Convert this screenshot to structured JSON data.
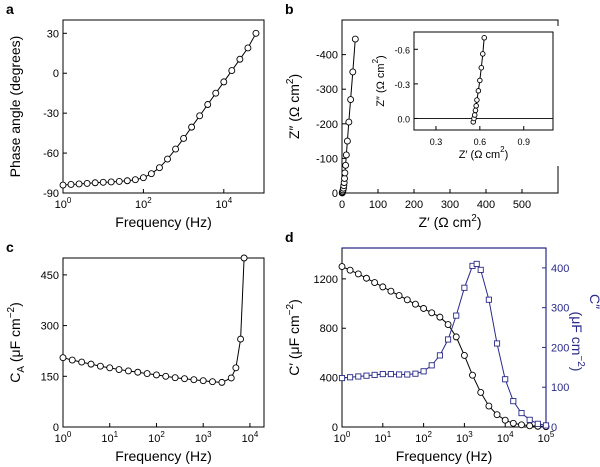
{
  "chart_data": [
    {
      "type": "scatter",
      "panel_label": "a",
      "xlabel": "Frequency (Hz)",
      "ylabel": "Phase angle (degrees)",
      "x_scale": "log",
      "xlim": [
        1,
        100000
      ],
      "ylim": [
        -90,
        40
      ],
      "y_reversed": true,
      "x_ticks": [
        1,
        100,
        10000
      ],
      "x_tick_labels": [
        {
          "base": "10",
          "exp": "0"
        },
        {
          "base": "10",
          "exp": "2"
        },
        {
          "base": "10",
          "exp": "4"
        }
      ],
      "y_ticks": [
        -90,
        -60,
        -30,
        0,
        30
      ],
      "y_tick_labels": [
        "-90",
        "-60",
        "-30",
        "0",
        "30"
      ],
      "series": [
        {
          "marker": "circle",
          "line": true,
          "x": [
            1,
            1.58,
            2.51,
            3.98,
            6.31,
            10,
            15.8,
            25.1,
            39.8,
            63.1,
            100,
            158,
            251,
            398,
            631,
            1000,
            1580,
            2510,
            3980,
            6310,
            10000,
            15800,
            25100,
            39800,
            63100
          ],
          "y": [
            -84,
            -83.6,
            -83.2,
            -82.8,
            -82.3,
            -82,
            -81.7,
            -81.3,
            -80.8,
            -80,
            -78.5,
            -75.5,
            -71,
            -64.5,
            -57,
            -49,
            -40.5,
            -32,
            -23.5,
            -15,
            -6.5,
            2,
            10.5,
            19,
            30
          ]
        }
      ]
    },
    {
      "type": "scatter",
      "panel_label": "b",
      "xlabel_parts": {
        "main": "Z′ (Ω cm",
        "sup": "2",
        "end": ")"
      },
      "ylabel_parts": {
        "main": "Z″ (Ω cm",
        "sup": "2",
        "end": ")"
      },
      "xlim": [
        0,
        600
      ],
      "ylim": [
        0,
        -500
      ],
      "x_ticks": [
        0,
        100,
        200,
        300,
        400,
        500
      ],
      "x_tick_labels": [
        "0",
        "100",
        "200",
        "300",
        "400",
        "500"
      ],
      "y_ticks": [
        0,
        -100,
        -200,
        -300,
        -400
      ],
      "y_tick_labels": [
        "0",
        "-100",
        "-200",
        "-300",
        "-400"
      ],
      "series": [
        {
          "marker": "circle",
          "line": true,
          "x": [
            0.6,
            1,
            2,
            3,
            4,
            5,
            6,
            7,
            8,
            10,
            12,
            15,
            19,
            24,
            30,
            37
          ],
          "y": [
            -0.05,
            -2,
            -5,
            -9,
            -14,
            -21,
            -30,
            -42,
            -58,
            -80,
            -110,
            -150,
            -205,
            -270,
            -350,
            -445
          ]
        }
      ],
      "inset": {
        "xlabel_parts": {
          "main": "Z′ (Ω cm",
          "sup": "2",
          "end": ")"
        },
        "ylabel_parts": {
          "main": "Z″ (Ω cm",
          "sup": "2",
          "end": ")"
        },
        "xlim": [
          0.15,
          1.1
        ],
        "ylim": [
          0.1,
          -0.75
        ],
        "x_ticks": [
          0.3,
          0.6,
          0.9
        ],
        "x_tick_labels": [
          "0.3",
          "0.6",
          "0.9"
        ],
        "y_ticks": [
          0,
          -0.3,
          -0.6
        ],
        "y_tick_labels": [
          "0.0",
          "-0.3",
          "-0.6"
        ],
        "reference_line_y": 0,
        "series": [
          {
            "marker": "circle",
            "line": true,
            "x": [
              0.555,
              0.56,
              0.565,
              0.57,
              0.575,
              0.58,
              0.59,
              0.6,
              0.61,
              0.62,
              0.63
            ],
            "y": [
              0.03,
              0,
              -0.03,
              -0.07,
              -0.11,
              -0.16,
              -0.24,
              -0.33,
              -0.44,
              -0.56,
              -0.7
            ]
          }
        ]
      }
    },
    {
      "type": "scatter",
      "panel_label": "c",
      "xlabel": "Frequency (Hz)",
      "ylabel_parts": {
        "main": "C",
        "sub": "A",
        "mid": " (μF cm",
        "sup": "−2",
        "end": ")"
      },
      "x_scale": "log",
      "xlim": [
        1,
        20000
      ],
      "ylim": [
        0,
        500
      ],
      "x_ticks": [
        1,
        10,
        100,
        1000,
        10000
      ],
      "x_tick_labels": [
        {
          "base": "10",
          "exp": "0"
        },
        {
          "base": "10",
          "exp": "1"
        },
        {
          "base": "10",
          "exp": "2"
        },
        {
          "base": "10",
          "exp": "3"
        },
        {
          "base": "10",
          "exp": "4"
        }
      ],
      "y_ticks": [
        0,
        150,
        300,
        450
      ],
      "y_tick_labels": [
        "0",
        "150",
        "300",
        "450"
      ],
      "series": [
        {
          "marker": "circle",
          "line": true,
          "x": [
            1,
            1.58,
            2.51,
            3.98,
            6.31,
            10,
            15.8,
            25.1,
            39.8,
            63.1,
            100,
            158,
            251,
            398,
            631,
            1000,
            1580,
            2510,
            3980,
            5000,
            6310,
            7500
          ],
          "y": [
            205,
            198,
            192,
            186,
            180,
            175,
            170,
            166,
            162,
            158,
            154,
            150,
            146,
            143,
            140,
            137,
            134,
            132,
            145,
            175,
            260,
            500
          ]
        }
      ]
    },
    {
      "type": "scatter",
      "panel_label": "d",
      "xlabel": "Frequency (Hz)",
      "ylabel_parts": {
        "main": "C′ (μF cm",
        "sup": "−2",
        "end": ")"
      },
      "y2label_parts": {
        "main": "C″",
        "line2": "(μF cm",
        "sup": "−2",
        "end": ")"
      },
      "x_scale": "log",
      "xlim": [
        1,
        100000
      ],
      "ylim": [
        0,
        1450
      ],
      "y2lim": [
        0,
        450
      ],
      "x_ticks": [
        1,
        10,
        100,
        1000,
        10000,
        100000
      ],
      "x_tick_labels": [
        {
          "base": "10",
          "exp": "0"
        },
        {
          "base": "10",
          "exp": "1"
        },
        {
          "base": "10",
          "exp": "2"
        },
        {
          "base": "10",
          "exp": "3"
        },
        {
          "base": "10",
          "exp": "4"
        },
        {
          "base": "10",
          "exp": "5"
        }
      ],
      "y_ticks": [
        0,
        400,
        800,
        1200
      ],
      "y_tick_labels": [
        "0",
        "400",
        "800",
        "1200"
      ],
      "y2_ticks": [
        0,
        100,
        200,
        300,
        400
      ],
      "y2_tick_labels": [
        "0",
        "100",
        "200",
        "300",
        "400"
      ],
      "y2_color": "#2a2a8a",
      "series": [
        {
          "name": "",
          "axis": "left",
          "marker": "circle",
          "line": true,
          "x": [
            1,
            1.58,
            2.51,
            3.98,
            6.31,
            10,
            15.8,
            25.1,
            39.8,
            63.1,
            100,
            158,
            251,
            398,
            631,
            1000,
            1580,
            2510,
            3980,
            6310,
            10000,
            15800,
            25100,
            39800,
            63100,
            100000
          ],
          "y": [
            1300,
            1270,
            1240,
            1205,
            1170,
            1135,
            1100,
            1065,
            1030,
            995,
            960,
            925,
            890,
            830,
            730,
            580,
            420,
            280,
            170,
            100,
            55,
            30,
            18,
            10,
            6,
            3
          ]
        },
        {
          "name": "",
          "axis": "right",
          "marker": "square",
          "line": true,
          "color": "#2a2a8a",
          "x": [
            1,
            1.58,
            2.51,
            3.98,
            6.31,
            10,
            15.8,
            25.1,
            39.8,
            63.1,
            100,
            158,
            251,
            398,
            631,
            1000,
            1580,
            2000,
            2510,
            3980,
            6310,
            10000,
            15800,
            25100,
            39800,
            63100,
            100000
          ],
          "y": [
            123,
            125,
            127,
            129,
            131,
            133,
            133,
            132,
            132,
            134,
            140,
            155,
            180,
            220,
            280,
            350,
            405,
            410,
            395,
            320,
            210,
            120,
            65,
            35,
            18,
            8,
            4
          ]
        }
      ]
    }
  ]
}
